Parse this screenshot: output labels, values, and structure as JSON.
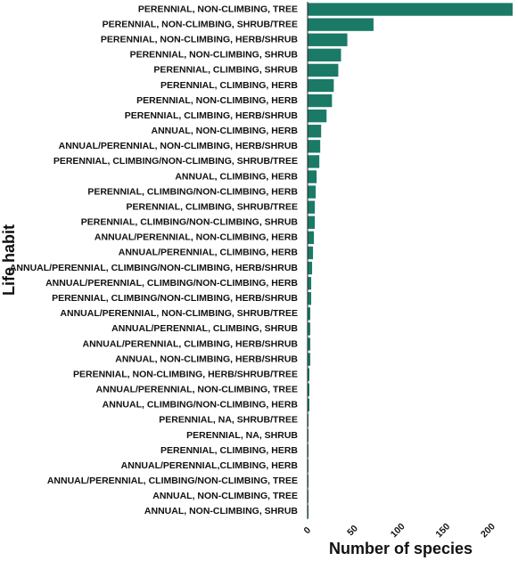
{
  "chart_data": {
    "type": "bar",
    "orientation": "horizontal",
    "title": "",
    "xlabel": "Number of species",
    "ylabel": "Life habit",
    "xlim": [
      0,
      230
    ],
    "xticks": [
      0,
      50,
      100,
      150,
      200
    ],
    "bar_color": "#1a7a66",
    "grid": false,
    "categories": [
      "PERENNIAL, NON-CLIMBING, TREE",
      "PERENNIAL, NON-CLIMBING, SHRUB/TREE",
      "PERENNIAL, NON-CLIMBING, HERB/SHRUB",
      "PERENNIAL, NON-CLIMBING, SHRUB",
      "PERENNIAL, CLIMBING, SHRUB",
      "PERENNIAL, CLIMBING, HERB",
      "PERENNIAL, NON-CLIMBING, HERB",
      "PERENNIAL, CLIMBING, HERB/SHRUB",
      "ANNUAL, NON-CLIMBING, HERB",
      "ANNUAL/PERENNIAL, NON-CLIMBING, HERB/SHRUB",
      "PERENNIAL, CLIMBING/NON-CLIMBING, SHRUB/TREE",
      "ANNUAL, CLIMBING, HERB",
      "PERENNIAL, CLIMBING/NON-CLIMBING, HERB",
      "PERENNIAL, CLIMBING, SHRUB/TREE",
      "PERENNIAL, CLIMBING/NON-CLIMBING, SHRUB",
      "ANNUAL/PERENNIAL, NON-CLIMBING, HERB",
      "ANNUAL/PERENNIAL, CLIMBING, HERB",
      "ANNUAL/PERENNIAL, CLIMBING/NON-CLIMBING, HERB/SHRUB",
      "ANNUAL/PERENNIAL, CLIMBING/NON-CLIMBING, HERB",
      "PERENNIAL, CLIMBING/NON-CLIMBING, HERB/SHRUB",
      "ANNUAL/PERENNIAL, NON-CLIMBING, SHRUB/TREE",
      "ANNUAL/PERENNIAL, CLIMBING, SHRUB",
      "ANNUAL/PERENNIAL, CLIMBING, HERB/SHRUB",
      "ANNUAL, NON-CLIMBING, HERB/SHRUB",
      "PERENNIAL, NON-CLIMBING, HERB/SHRUB/TREE",
      "ANNUAL/PERENNIAL, NON-CLIMBING, TREE",
      "ANNUAL, CLIMBING/NON-CLIMBING, HERB",
      "PERENNIAL, NA, SHRUB/TREE",
      "PERENNIAL, NA, SHRUB",
      "PERENNIAL, CLIMBING,  HERB",
      "ANNUAL/PERENNIAL,CLIMBING, HERB",
      "ANNUAL/PERENNIAL, CLIMBING/NON-CLIMBING, TREE",
      "ANNUAL, NON-CLIMBING, TREE",
      "ANNUAL, NON-CLIMBING, SHRUB"
    ],
    "values": [
      227,
      73,
      44,
      37,
      34,
      29,
      27,
      21,
      15,
      14,
      13,
      10,
      9,
      8,
      8,
      7,
      6,
      5,
      4,
      4,
      3,
      3,
      3,
      3,
      2,
      2,
      2,
      1,
      1,
      1,
      1,
      1,
      1,
      1
    ]
  }
}
